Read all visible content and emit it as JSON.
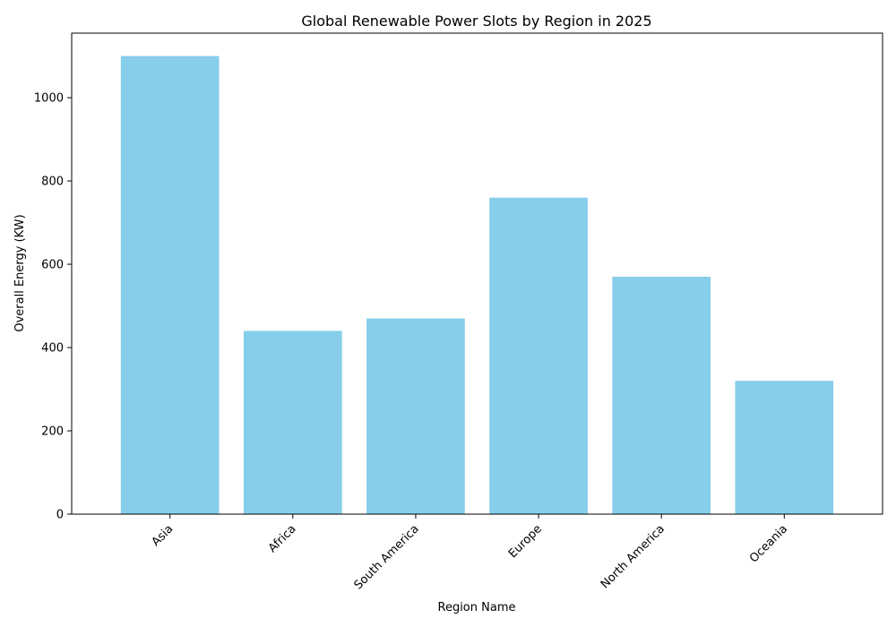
{
  "chart_data": {
    "type": "bar",
    "title": "Global Renewable Power Slots by Region in 2025",
    "xlabel": "Region Name",
    "ylabel": "Overall Energy (KW)",
    "categories": [
      "Asia",
      "Africa",
      "South America",
      "Europe",
      "North America",
      "Oceania"
    ],
    "values": [
      1100,
      440,
      470,
      760,
      570,
      320
    ],
    "ylim": [
      0,
      1155
    ],
    "yticks": [
      0,
      200,
      400,
      600,
      800,
      1000
    ],
    "bar_color": "#87CEEB",
    "grid": false,
    "legend": "none"
  }
}
